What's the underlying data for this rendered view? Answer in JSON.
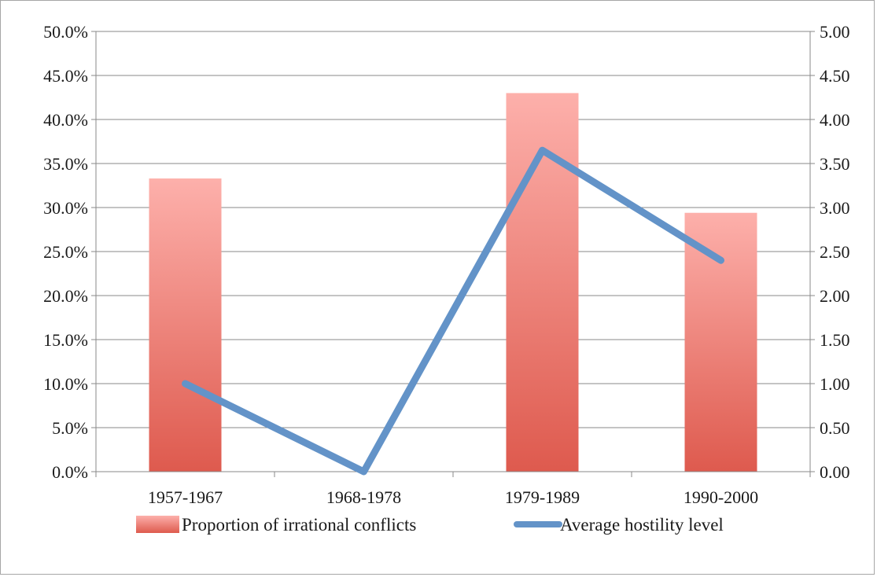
{
  "chart_data": {
    "type": "bar-line-combo",
    "categories": [
      "1957-1967",
      "1968-1978",
      "1979-1989",
      "1990-2000"
    ],
    "series": [
      {
        "name": "Proportion of irrational conflicts",
        "type": "bar",
        "axis": "left",
        "values": [
          33.3,
          0.0,
          43.0,
          29.4
        ],
        "color_top": "#fdb0ab",
        "color_bottom": "#de5a4e"
      },
      {
        "name": "Average hostility level",
        "type": "line",
        "axis": "right",
        "values": [
          1.0,
          0.0,
          3.65,
          2.4
        ],
        "color": "#6393c8"
      }
    ],
    "left_axis": {
      "ylim": [
        0,
        50
      ],
      "ticks": [
        0,
        5,
        10,
        15,
        20,
        25,
        30,
        35,
        40,
        45,
        50
      ],
      "tick_labels": [
        "0.0%",
        "5.0%",
        "10.0%",
        "15.0%",
        "20.0%",
        "25.0%",
        "30.0%",
        "35.0%",
        "40.0%",
        "45.0%",
        "50.0%"
      ]
    },
    "right_axis": {
      "ylim": [
        0,
        5
      ],
      "ticks": [
        0,
        0.5,
        1,
        1.5,
        2,
        2.5,
        3,
        3.5,
        4,
        4.5,
        5
      ],
      "tick_labels": [
        "0.00",
        "0.50",
        "1.00",
        "1.50",
        "2.00",
        "2.50",
        "3.00",
        "3.50",
        "4.00",
        "4.50",
        "5.00"
      ]
    },
    "grid": true,
    "legend": "bottom"
  }
}
